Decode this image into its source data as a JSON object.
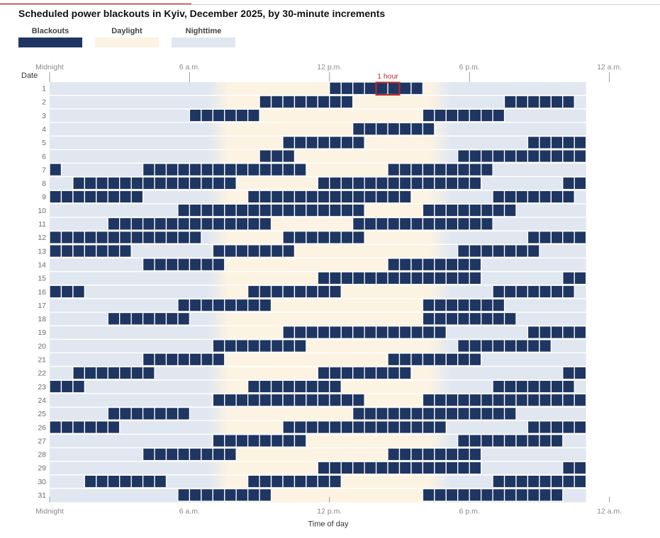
{
  "header": {
    "title": "Scheduled power blackouts in Kyiv, December 2025, by 30-minute increments"
  },
  "legend": [
    {
      "label": "Blackouts",
      "color": "#1e3661"
    },
    {
      "label": "Daylight",
      "color": "#fdf3e3"
    },
    {
      "label": "Nighttime",
      "color": "#e1e7f0"
    }
  ],
  "colors": {
    "blackout": "#1e3661",
    "daylight": "#fdf3e3",
    "nighttime": "#e1e7f0",
    "annotation": "#c1272d",
    "axis_text": "#8a8a8a"
  },
  "chart_data": {
    "type": "heatmap",
    "title": "Scheduled power blackouts in Kyiv, December 2025, by 30-minute increments",
    "xlabel": "Time of day",
    "ylabel": "Date",
    "x_unit": "30-minute slot (0 = midnight)",
    "xlim_hours": [
      0,
      23
    ],
    "x_ticks": [
      {
        "hour": 0,
        "label": "Midnight"
      },
      {
        "hour": 6,
        "label": "6 a.m."
      },
      {
        "hour": 12,
        "label": "12 p.m."
      },
      {
        "hour": 18,
        "label": "6 p.m."
      },
      {
        "hour": 24,
        "label": "12 a.m."
      }
    ],
    "daylight_hours": [
      7.5,
      16.5
    ],
    "annotation": {
      "label": "1 hour",
      "day": 1,
      "start_hour": 14,
      "end_hour": 15
    },
    "days": [
      "1",
      "2",
      "3",
      "4",
      "5",
      "6",
      "7",
      "8",
      "9",
      "10",
      "11",
      "12",
      "13",
      "14",
      "15",
      "16",
      "17",
      "18",
      "19",
      "20",
      "21",
      "22",
      "23",
      "24",
      "25",
      "26",
      "27",
      "28",
      "29",
      "30",
      "31"
    ],
    "blackouts": [
      {
        "day": 1,
        "slots": [
          [
            24,
            31
          ]
        ]
      },
      {
        "day": 2,
        "slots": [
          [
            18,
            25
          ],
          [
            39,
            44
          ]
        ]
      },
      {
        "day": 3,
        "slots": [
          [
            12,
            17
          ],
          [
            32,
            38
          ]
        ]
      },
      {
        "day": 4,
        "slots": [
          [
            26,
            32
          ]
        ]
      },
      {
        "day": 5,
        "slots": [
          [
            20,
            26
          ],
          [
            41,
            45
          ]
        ]
      },
      {
        "day": 6,
        "slots": [
          [
            18,
            20
          ],
          [
            35,
            45
          ]
        ]
      },
      {
        "day": 7,
        "slots": [
          [
            0,
            0
          ],
          [
            8,
            21
          ],
          [
            29,
            37
          ]
        ]
      },
      {
        "day": 8,
        "slots": [
          [
            2,
            15
          ],
          [
            23,
            36
          ],
          [
            44,
            45
          ]
        ]
      },
      {
        "day": 9,
        "slots": [
          [
            0,
            7
          ],
          [
            17,
            30
          ],
          [
            38,
            44
          ]
        ]
      },
      {
        "day": 10,
        "slots": [
          [
            11,
            26
          ],
          [
            32,
            39
          ]
        ]
      },
      {
        "day": 11,
        "slots": [
          [
            5,
            18
          ],
          [
            26,
            37
          ]
        ]
      },
      {
        "day": 12,
        "slots": [
          [
            0,
            12
          ],
          [
            20,
            26
          ],
          [
            41,
            45
          ]
        ]
      },
      {
        "day": 13,
        "slots": [
          [
            0,
            6
          ],
          [
            14,
            20
          ],
          [
            35,
            41
          ]
        ]
      },
      {
        "day": 14,
        "slots": [
          [
            8,
            14
          ],
          [
            29,
            36
          ]
        ]
      },
      {
        "day": 15,
        "slots": [
          [
            23,
            36
          ],
          [
            44,
            45
          ]
        ]
      },
      {
        "day": 16,
        "slots": [
          [
            0,
            2
          ],
          [
            17,
            24
          ],
          [
            38,
            44
          ]
        ]
      },
      {
        "day": 17,
        "slots": [
          [
            11,
            18
          ],
          [
            32,
            38
          ]
        ]
      },
      {
        "day": 18,
        "slots": [
          [
            5,
            11
          ],
          [
            32,
            39
          ]
        ]
      },
      {
        "day": 19,
        "slots": [
          [
            20,
            33
          ],
          [
            41,
            45
          ]
        ]
      },
      {
        "day": 20,
        "slots": [
          [
            14,
            21
          ],
          [
            35,
            42
          ]
        ]
      },
      {
        "day": 21,
        "slots": [
          [
            8,
            14
          ],
          [
            29,
            36
          ]
        ]
      },
      {
        "day": 22,
        "slots": [
          [
            2,
            8
          ],
          [
            23,
            30
          ],
          [
            44,
            45
          ]
        ]
      },
      {
        "day": 23,
        "slots": [
          [
            0,
            2
          ],
          [
            17,
            24
          ],
          [
            38,
            44
          ]
        ]
      },
      {
        "day": 24,
        "slots": [
          [
            14,
            26
          ],
          [
            32,
            45
          ]
        ]
      },
      {
        "day": 25,
        "slots": [
          [
            5,
            11
          ],
          [
            26,
            39
          ]
        ]
      },
      {
        "day": 26,
        "slots": [
          [
            0,
            5
          ],
          [
            20,
            33
          ],
          [
            41,
            45
          ]
        ]
      },
      {
        "day": 27,
        "slots": [
          [
            14,
            21
          ],
          [
            35,
            43
          ]
        ]
      },
      {
        "day": 28,
        "slots": [
          [
            8,
            15
          ],
          [
            29,
            36
          ]
        ]
      },
      {
        "day": 29,
        "slots": [
          [
            23,
            36
          ],
          [
            44,
            45
          ]
        ]
      },
      {
        "day": 30,
        "slots": [
          [
            3,
            9
          ],
          [
            17,
            24
          ],
          [
            38,
            45
          ]
        ]
      },
      {
        "day": 31,
        "slots": [
          [
            11,
            18
          ],
          [
            32,
            43
          ]
        ]
      }
    ]
  }
}
